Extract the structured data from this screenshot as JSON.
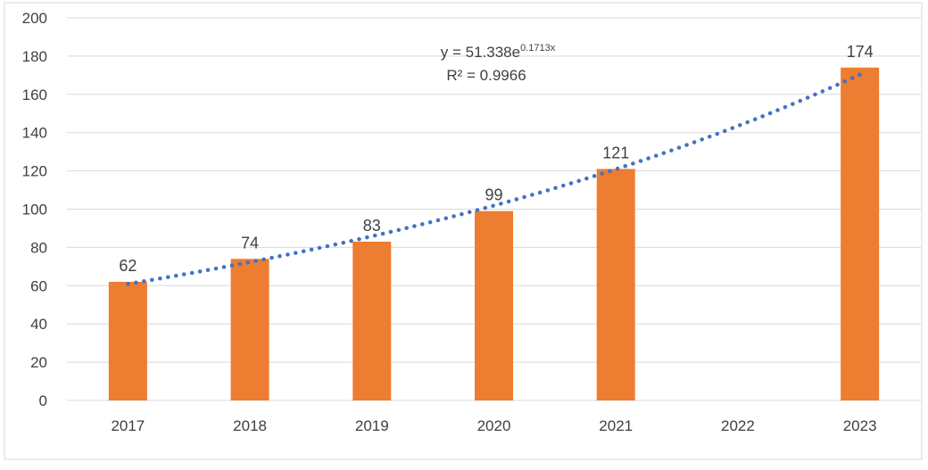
{
  "chart_data": {
    "type": "bar",
    "title": "",
    "xlabel": "",
    "ylabel": "",
    "categories": [
      "2017",
      "2018",
      "2019",
      "2020",
      "2021",
      "2022",
      "2023"
    ],
    "values": [
      62,
      74,
      83,
      99,
      121,
      null,
      174
    ],
    "data_labels": [
      "62",
      "74",
      "83",
      "99",
      "121",
      "",
      "174"
    ],
    "ylim": [
      0,
      200
    ],
    "yticks": [
      0,
      20,
      40,
      60,
      80,
      100,
      120,
      140,
      160,
      180,
      200
    ],
    "grid": true,
    "legend": "none",
    "bar_color": "#ed7d31",
    "trendline": {
      "type": "exponential",
      "a": 51.338,
      "b": 0.1713,
      "color": "#4472c4",
      "style": "dotted",
      "equation_base": "y = 51.338e",
      "equation_exponent": "0.1713x",
      "r_squared_label": "R² = 0.9966"
    }
  }
}
